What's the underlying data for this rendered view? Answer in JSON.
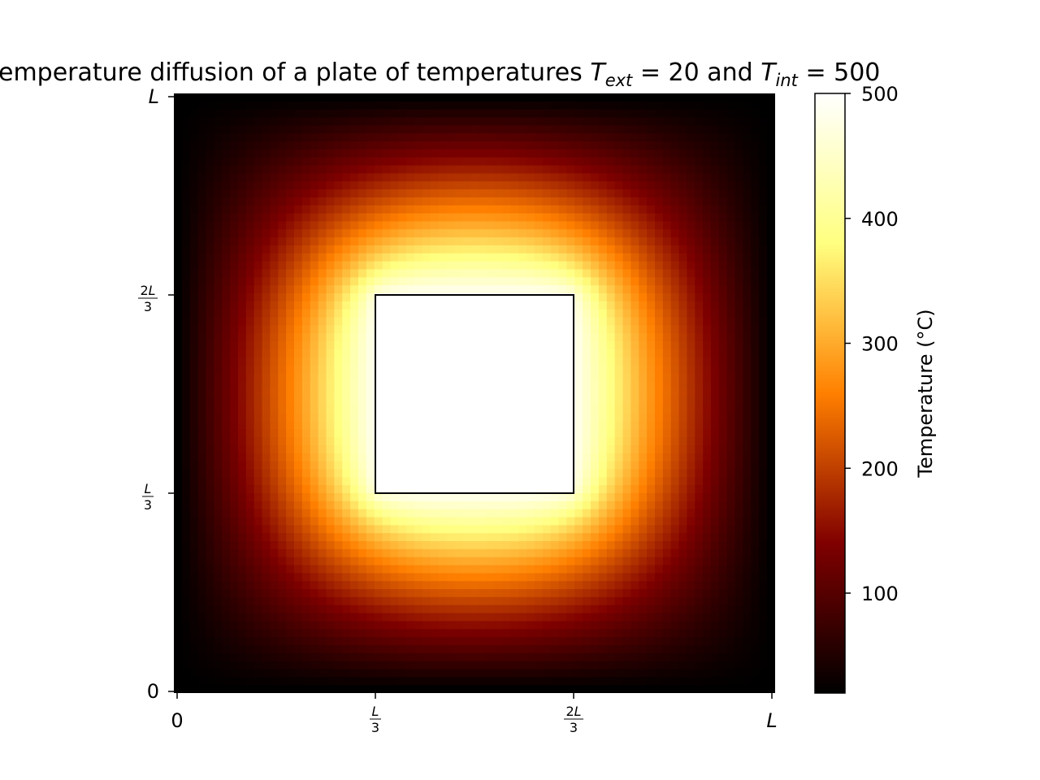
{
  "chart_data": {
    "type": "heatmap",
    "title": {
      "prefix": "emperature diffusion of a plate of temperatures ",
      "t_ext_symbol": "T",
      "t_ext_subscript": "ext",
      "t_ext_value": " = 20",
      "middle": " and ",
      "t_int_symbol": "T",
      "t_int_subscript": "int",
      "t_int_value": " = 500"
    },
    "colormap": "afmhot",
    "vmin": 20,
    "vmax": 500,
    "T_ext": 20,
    "T_int": 500,
    "inner_square": {
      "x_range": [
        "L/3",
        "2L/3"
      ],
      "y_range": [
        "L/3",
        "2L/3"
      ],
      "value": 500,
      "edge_color": "#000000"
    },
    "x_ticks": [
      {
        "kind": "plain",
        "text": "0"
      },
      {
        "kind": "frac",
        "num": "L",
        "den": "3"
      },
      {
        "kind": "frac",
        "num": "2L",
        "den": "3"
      },
      {
        "kind": "italic",
        "text": "L"
      }
    ],
    "y_ticks": [
      {
        "kind": "plain",
        "text": "0"
      },
      {
        "kind": "frac",
        "num": "L",
        "den": "3"
      },
      {
        "kind": "frac",
        "num": "2L",
        "den": "3"
      },
      {
        "kind": "italic",
        "text": "L"
      }
    ],
    "colorbar": {
      "label": "Temperature (°C)",
      "ticks": [
        {
          "value": 100,
          "label": "100"
        },
        {
          "value": 200,
          "label": "200"
        },
        {
          "value": 300,
          "label": "300"
        },
        {
          "value": 400,
          "label": "400"
        },
        {
          "value": 500,
          "label": "500"
        }
      ]
    },
    "grid": false
  }
}
